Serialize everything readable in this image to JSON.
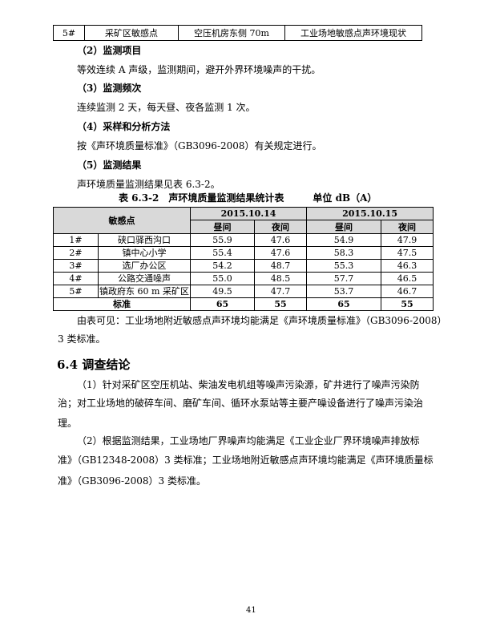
{
  "top_row": [
    "5#",
    "采矿区敏感点",
    "空压机房东侧 70m",
    "工业场地敏感点声环境现状"
  ],
  "sections": [
    {
      "heading": "（2）监测项目",
      "text": "等效连续 A 声级，监测期间，避开外界环境噪声的干扰。"
    },
    {
      "heading": "（3）监测频次",
      "text": "连续监测 2 天，每天昼、夜各监测 1 次。"
    },
    {
      "heading": "（4）采样和分析方法",
      "text": "按《声环境质量标准》（GB3096-2008）有关规定进行。"
    },
    {
      "heading": "（5）监测结果",
      "text": "声环境质量监测结果见表 6.3-2。"
    }
  ],
  "table": {
    "caption": "表 6.3-2　声环境质量监测结果统计表　　　单位 dB（A）",
    "col_point": "敏感点",
    "dates": [
      "2015.10.14",
      "2015.10.15"
    ],
    "sub": [
      "昼间",
      "夜间",
      "昼间",
      "夜间"
    ],
    "rows": [
      [
        "1#",
        "硖口驿西沟口",
        "55.9",
        "47.6",
        "54.9",
        "47.9"
      ],
      [
        "2#",
        "镇中心小学",
        "55.4",
        "47.6",
        "58.3",
        "47.5"
      ],
      [
        "3#",
        "选厂办公区",
        "54.2",
        "48.7",
        "55.3",
        "46.3"
      ],
      [
        "4#",
        "公路交通噪声",
        "55.0",
        "48.5",
        "57.7",
        "46.5"
      ],
      [
        "5#",
        "镇政府东 60 m 采矿区",
        "49.5",
        "47.7",
        "53.7",
        "46.7"
      ]
    ],
    "standard": [
      "标准",
      "65",
      "55",
      "65",
      "55"
    ]
  },
  "conclusion_line1": "由表可见：工业场地附近敏感点声环境均能满足《声环境质量标准》（GB3096-2008）",
  "conclusion_line2": "3 类标准。",
  "section64": {
    "title": "6.4  调查结论",
    "p1": [
      "（1）针对采矿区空压机站、柴油发电机组等噪声污染源，矿井进行了噪声污染防",
      "治；对工业场地的破碎车间、磨矿车间、循环水泵站等主要产噪设备进行了噪声污染治",
      "理。"
    ],
    "p2": [
      "（2）根据监测结果，工业场地厂界噪声均能满足《工业企业厂界环境噪声排放标",
      "准》（GB12348-2008）3 类标准；工业场地附近敏感点声环境均能满足《声环境质量标",
      "准》（GB3096-2008）3 类标准。"
    ]
  },
  "page_number": "41"
}
